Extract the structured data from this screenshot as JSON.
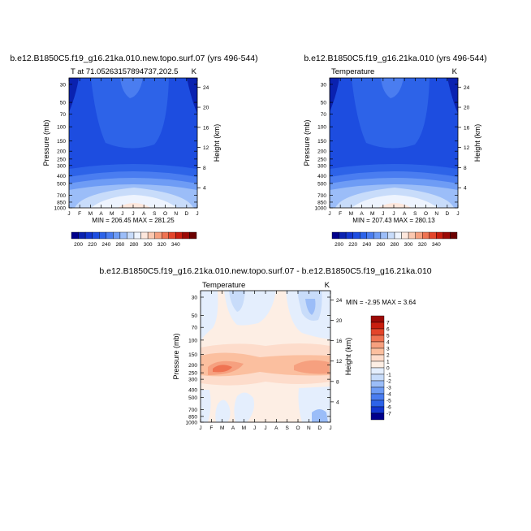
{
  "chart_data": [
    {
      "type": "heatmap",
      "title": "b.e12.B1850C5.f19_g16.21ka.010.new.topo.surf.07 (yrs 496-544)",
      "subtitle": "T at 71.05263157894737,202.5",
      "units": "K",
      "xlabel": "",
      "ylabel": "Pressure (mb)",
      "ylabel_right": "Height (km)",
      "x_ticks": [
        "J",
        "F",
        "M",
        "A",
        "M",
        "J",
        "J",
        "A",
        "S",
        "O",
        "N",
        "D",
        "J"
      ],
      "y_ticks": [
        "30",
        "50",
        "70",
        "100",
        "150",
        "200",
        "250",
        "300",
        "400",
        "500",
        "700",
        "850",
        "1000"
      ],
      "y_ticks_right": [
        "24",
        "20",
        "16",
        "12",
        "8",
        "4"
      ],
      "y_scale": "log",
      "ylim": [
        1000,
        25
      ],
      "stats": "MIN = 206.45 MAX = 281.25",
      "colorbar": {
        "labels": [
          "200",
          "220",
          "240",
          "260",
          "280",
          "300",
          "320",
          "340"
        ],
        "colors": [
          "#00008b",
          "#0a22b0",
          "#1236cf",
          "#1d4de0",
          "#2d63e8",
          "#4a7df0",
          "#6e9cf5",
          "#9bbdf8",
          "#c8dcfa",
          "#eef4fe",
          "#fde7dc",
          "#fbc8b0",
          "#f6a07f",
          "#ef7352",
          "#e3452a",
          "#c81e0f",
          "#9c0a06",
          "#6b0000"
        ]
      },
      "field_levels": [
        {
          "p": 30,
          "t": 213
        },
        {
          "p": 100,
          "t": 212
        },
        {
          "p": 200,
          "t": 214
        },
        {
          "p": 300,
          "t": 220
        },
        {
          "p": 400,
          "t": 232
        },
        {
          "p": 500,
          "t": 243
        },
        {
          "p": 700,
          "t": 258
        },
        {
          "p": 850,
          "t": 266
        },
        {
          "p": 1000,
          "t": 274
        }
      ]
    },
    {
      "type": "heatmap",
      "title": "b.e12.B1850C5.f19_g16.21ka.010 (yrs 496-544)",
      "subtitle": "Temperature",
      "units": "K",
      "xlabel": "",
      "ylabel": "Pressure (mb)",
      "ylabel_right": "Height (km)",
      "x_ticks": [
        "J",
        "F",
        "M",
        "A",
        "M",
        "J",
        "J",
        "A",
        "S",
        "O",
        "N",
        "D",
        "J"
      ],
      "y_ticks": [
        "30",
        "50",
        "70",
        "100",
        "150",
        "200",
        "250",
        "300",
        "400",
        "500",
        "700",
        "850",
        "1000"
      ],
      "y_ticks_right": [
        "24",
        "20",
        "16",
        "12",
        "8",
        "4"
      ],
      "y_scale": "log",
      "ylim": [
        1000,
        25
      ],
      "stats": "MIN = 207.43 MAX = 280.13",
      "colorbar": {
        "labels": [
          "200",
          "220",
          "240",
          "260",
          "280",
          "300",
          "320",
          "340"
        ],
        "colors": [
          "#00008b",
          "#0a22b0",
          "#1236cf",
          "#1d4de0",
          "#2d63e8",
          "#4a7df0",
          "#6e9cf5",
          "#9bbdf8",
          "#c8dcfa",
          "#eef4fe",
          "#fde7dc",
          "#fbc8b0",
          "#f6a07f",
          "#ef7352",
          "#e3452a",
          "#c81e0f",
          "#9c0a06",
          "#6b0000"
        ]
      }
    },
    {
      "type": "heatmap",
      "title": "b.e12.B1850C5.f19_g16.21ka.010.new.topo.surf.07 - b.e12.B1850C5.f19_g16.21ka.010",
      "subtitle": "Temperature",
      "units": "K",
      "xlabel": "",
      "ylabel": "Pressure (mb)",
      "ylabel_right": "Height (km)",
      "x_ticks": [
        "J",
        "F",
        "M",
        "A",
        "M",
        "J",
        "J",
        "A",
        "S",
        "O",
        "N",
        "D",
        "J"
      ],
      "y_ticks": [
        "30",
        "50",
        "70",
        "100",
        "150",
        "200",
        "250",
        "300",
        "400",
        "500",
        "700",
        "850",
        "1000"
      ],
      "y_ticks_right": [
        "24",
        "20",
        "16",
        "12",
        "8",
        "4"
      ],
      "y_scale": "log",
      "ylim": [
        1000,
        25
      ],
      "stats": "MIN =  -2.95 MAX =   3.64",
      "colorbar": {
        "labels": [
          "7",
          "6",
          "5",
          "4",
          "3",
          "2",
          "1",
          "0",
          "-1",
          "-2",
          "-3",
          "-4",
          "-5",
          "-6",
          "-7"
        ],
        "colors": [
          "#9c0a06",
          "#c81e0f",
          "#e3452a",
          "#ef7352",
          "#f6a07f",
          "#fbbf9f",
          "#fddccb",
          "#fdeee4",
          "#e4eefd",
          "#c8dcfa",
          "#9bbdf8",
          "#6e9cf5",
          "#4a7df0",
          "#2d63e8",
          "#1236cf",
          "#00008b"
        ]
      }
    }
  ]
}
